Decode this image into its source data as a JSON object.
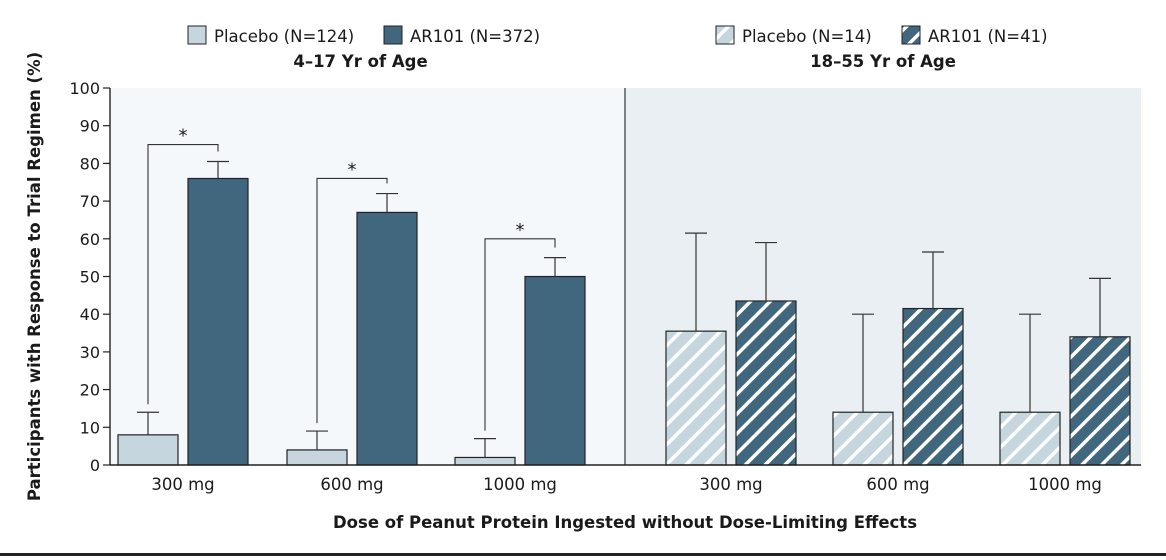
{
  "chart_data": {
    "type": "bar",
    "ylabel": "Participants with Response to Trial Regimen (%)",
    "xlabel": "Dose of Peanut Protein Ingested without Dose-Limiting Effects",
    "ylim": [
      0,
      100
    ],
    "yticks": [
      "0",
      "10",
      "20",
      "30",
      "40",
      "50",
      "60",
      "70",
      "80",
      "90",
      "100"
    ],
    "categories": [
      "300 mg",
      "600 mg",
      "1000 mg"
    ],
    "significance_marker": "*",
    "panels": [
      {
        "title": "4–17 Yr of Age",
        "background": "#f5f8fa",
        "hatched": false,
        "series": [
          {
            "name": "Placebo (N=124)",
            "color": "#c6d6df",
            "values": [
              8,
              4,
              2
            ],
            "err_upper": [
              14,
              9,
              7
            ]
          },
          {
            "name": "AR101 (N=372)",
            "color": "#41677f",
            "values": [
              76,
              67,
              50
            ],
            "err_upper": [
              80.5,
              72,
              55
            ]
          }
        ],
        "significant": [
          true,
          true,
          true
        ],
        "bracket_y": [
          85,
          76,
          60
        ]
      },
      {
        "title": "18–55 Yr of Age",
        "background": "#eaeff3",
        "hatched": true,
        "series": [
          {
            "name": "Placebo (N=14)",
            "color": "#c6d6df",
            "values": [
              35.5,
              14,
              14
            ],
            "err_upper": [
              61.5,
              40,
              40
            ]
          },
          {
            "name": "AR101 (N=41)",
            "color": "#41677f",
            "values": [
              43.5,
              41.5,
              34
            ],
            "err_upper": [
              59,
              56.5,
              49.5
            ]
          }
        ],
        "significant": [
          false,
          false,
          false
        ],
        "bracket_y": []
      }
    ]
  }
}
